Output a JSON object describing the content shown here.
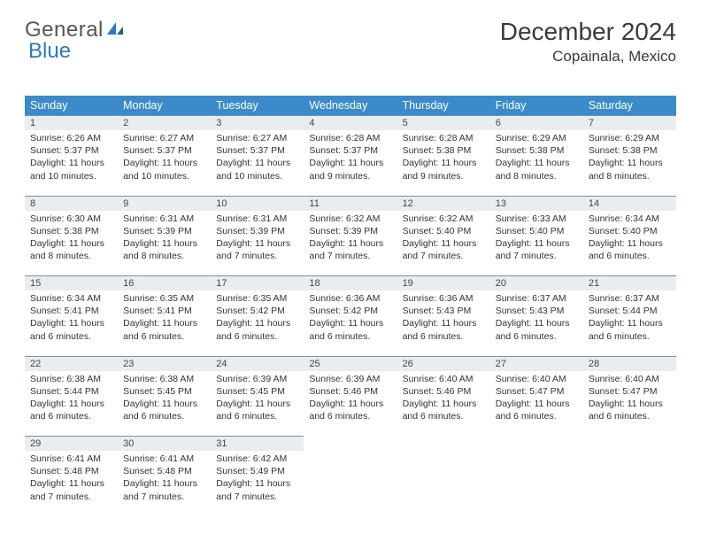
{
  "logo": {
    "text1": "General",
    "text2": "Blue"
  },
  "title": "December 2024",
  "location": "Copainala, Mexico",
  "colors": {
    "header_bg": "#3b8bca",
    "header_text": "#ffffff",
    "daynum_bg": "#e9edf0",
    "row_border": "#6f94b5",
    "body_text": "#333333",
    "logo_gray": "#555555",
    "logo_blue": "#2b7bbf"
  },
  "weekdays": [
    "Sunday",
    "Monday",
    "Tuesday",
    "Wednesday",
    "Thursday",
    "Friday",
    "Saturday"
  ],
  "weeks": [
    [
      {
        "n": "1",
        "sr": "Sunrise: 6:26 AM",
        "ss": "Sunset: 5:37 PM",
        "dl": "Daylight: 11 hours and 10 minutes."
      },
      {
        "n": "2",
        "sr": "Sunrise: 6:27 AM",
        "ss": "Sunset: 5:37 PM",
        "dl": "Daylight: 11 hours and 10 minutes."
      },
      {
        "n": "3",
        "sr": "Sunrise: 6:27 AM",
        "ss": "Sunset: 5:37 PM",
        "dl": "Daylight: 11 hours and 10 minutes."
      },
      {
        "n": "4",
        "sr": "Sunrise: 6:28 AM",
        "ss": "Sunset: 5:37 PM",
        "dl": "Daylight: 11 hours and 9 minutes."
      },
      {
        "n": "5",
        "sr": "Sunrise: 6:28 AM",
        "ss": "Sunset: 5:38 PM",
        "dl": "Daylight: 11 hours and 9 minutes."
      },
      {
        "n": "6",
        "sr": "Sunrise: 6:29 AM",
        "ss": "Sunset: 5:38 PM",
        "dl": "Daylight: 11 hours and 8 minutes."
      },
      {
        "n": "7",
        "sr": "Sunrise: 6:29 AM",
        "ss": "Sunset: 5:38 PM",
        "dl": "Daylight: 11 hours and 8 minutes."
      }
    ],
    [
      {
        "n": "8",
        "sr": "Sunrise: 6:30 AM",
        "ss": "Sunset: 5:38 PM",
        "dl": "Daylight: 11 hours and 8 minutes."
      },
      {
        "n": "9",
        "sr": "Sunrise: 6:31 AM",
        "ss": "Sunset: 5:39 PM",
        "dl": "Daylight: 11 hours and 8 minutes."
      },
      {
        "n": "10",
        "sr": "Sunrise: 6:31 AM",
        "ss": "Sunset: 5:39 PM",
        "dl": "Daylight: 11 hours and 7 minutes."
      },
      {
        "n": "11",
        "sr": "Sunrise: 6:32 AM",
        "ss": "Sunset: 5:39 PM",
        "dl": "Daylight: 11 hours and 7 minutes."
      },
      {
        "n": "12",
        "sr": "Sunrise: 6:32 AM",
        "ss": "Sunset: 5:40 PM",
        "dl": "Daylight: 11 hours and 7 minutes."
      },
      {
        "n": "13",
        "sr": "Sunrise: 6:33 AM",
        "ss": "Sunset: 5:40 PM",
        "dl": "Daylight: 11 hours and 7 minutes."
      },
      {
        "n": "14",
        "sr": "Sunrise: 6:34 AM",
        "ss": "Sunset: 5:40 PM",
        "dl": "Daylight: 11 hours and 6 minutes."
      }
    ],
    [
      {
        "n": "15",
        "sr": "Sunrise: 6:34 AM",
        "ss": "Sunset: 5:41 PM",
        "dl": "Daylight: 11 hours and 6 minutes."
      },
      {
        "n": "16",
        "sr": "Sunrise: 6:35 AM",
        "ss": "Sunset: 5:41 PM",
        "dl": "Daylight: 11 hours and 6 minutes."
      },
      {
        "n": "17",
        "sr": "Sunrise: 6:35 AM",
        "ss": "Sunset: 5:42 PM",
        "dl": "Daylight: 11 hours and 6 minutes."
      },
      {
        "n": "18",
        "sr": "Sunrise: 6:36 AM",
        "ss": "Sunset: 5:42 PM",
        "dl": "Daylight: 11 hours and 6 minutes."
      },
      {
        "n": "19",
        "sr": "Sunrise: 6:36 AM",
        "ss": "Sunset: 5:43 PM",
        "dl": "Daylight: 11 hours and 6 minutes."
      },
      {
        "n": "20",
        "sr": "Sunrise: 6:37 AM",
        "ss": "Sunset: 5:43 PM",
        "dl": "Daylight: 11 hours and 6 minutes."
      },
      {
        "n": "21",
        "sr": "Sunrise: 6:37 AM",
        "ss": "Sunset: 5:44 PM",
        "dl": "Daylight: 11 hours and 6 minutes."
      }
    ],
    [
      {
        "n": "22",
        "sr": "Sunrise: 6:38 AM",
        "ss": "Sunset: 5:44 PM",
        "dl": "Daylight: 11 hours and 6 minutes."
      },
      {
        "n": "23",
        "sr": "Sunrise: 6:38 AM",
        "ss": "Sunset: 5:45 PM",
        "dl": "Daylight: 11 hours and 6 minutes."
      },
      {
        "n": "24",
        "sr": "Sunrise: 6:39 AM",
        "ss": "Sunset: 5:45 PM",
        "dl": "Daylight: 11 hours and 6 minutes."
      },
      {
        "n": "25",
        "sr": "Sunrise: 6:39 AM",
        "ss": "Sunset: 5:46 PM",
        "dl": "Daylight: 11 hours and 6 minutes."
      },
      {
        "n": "26",
        "sr": "Sunrise: 6:40 AM",
        "ss": "Sunset: 5:46 PM",
        "dl": "Daylight: 11 hours and 6 minutes."
      },
      {
        "n": "27",
        "sr": "Sunrise: 6:40 AM",
        "ss": "Sunset: 5:47 PM",
        "dl": "Daylight: 11 hours and 6 minutes."
      },
      {
        "n": "28",
        "sr": "Sunrise: 6:40 AM",
        "ss": "Sunset: 5:47 PM",
        "dl": "Daylight: 11 hours and 6 minutes."
      }
    ],
    [
      {
        "n": "29",
        "sr": "Sunrise: 6:41 AM",
        "ss": "Sunset: 5:48 PM",
        "dl": "Daylight: 11 hours and 7 minutes."
      },
      {
        "n": "30",
        "sr": "Sunrise: 6:41 AM",
        "ss": "Sunset: 5:48 PM",
        "dl": "Daylight: 11 hours and 7 minutes."
      },
      {
        "n": "31",
        "sr": "Sunrise: 6:42 AM",
        "ss": "Sunset: 5:49 PM",
        "dl": "Daylight: 11 hours and 7 minutes."
      },
      null,
      null,
      null,
      null
    ]
  ]
}
